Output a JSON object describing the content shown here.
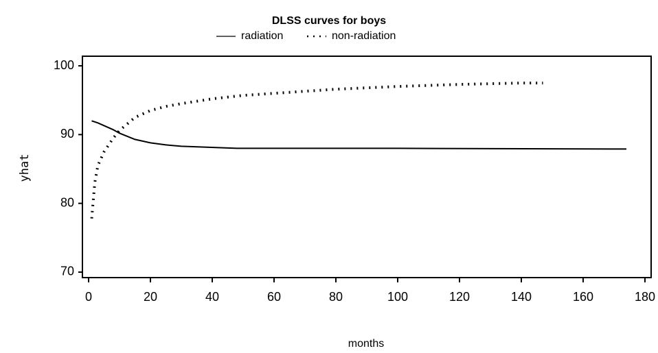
{
  "chart_data": {
    "type": "line",
    "title": "DLSS curves for boys",
    "x_label": "months",
    "y_label": "yhat",
    "series": [
      {
        "name": "radiation",
        "color": "#000000",
        "line_style": "solid",
        "x": [
          1,
          3,
          5,
          8,
          10,
          15,
          20,
          25,
          30,
          36,
          48,
          60,
          100,
          174
        ],
        "values": [
          92,
          91.7,
          91.3,
          90.7,
          90.2,
          89.3,
          88.8,
          88.5,
          88.3,
          88.2,
          88.0,
          88.0,
          88.0,
          87.9
        ]
      },
      {
        "name": "non-radiation",
        "color": "#000000",
        "line_style": "dotted",
        "x": [
          1,
          2,
          3,
          5,
          8,
          10,
          15,
          20,
          25,
          30,
          40,
          50,
          60,
          80,
          100,
          120,
          140,
          147
        ],
        "values": [
          77.8,
          83,
          85.5,
          87.5,
          89.5,
          90.6,
          92.5,
          93.5,
          94.1,
          94.5,
          95.2,
          95.7,
          96.0,
          96.6,
          97.0,
          97.3,
          97.5,
          97.5
        ]
      }
    ],
    "xlim": [
      -2,
      182
    ],
    "ylim": [
      69.2,
      101.4
    ],
    "xticks": [
      0,
      20,
      40,
      60,
      80,
      100,
      120,
      140,
      160,
      180
    ],
    "yticks": [
      70,
      80,
      90,
      100
    ],
    "grid": false
  }
}
